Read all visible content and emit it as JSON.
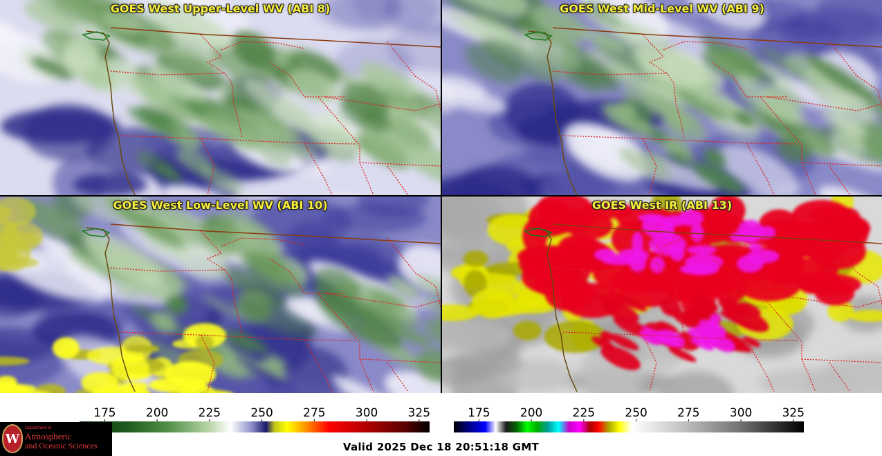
{
  "panels": [
    {
      "id": "upper",
      "title": "GOES West Upper-Level WV (ABI 8)",
      "palette": "wv",
      "moisture": 0.78
    },
    {
      "id": "mid",
      "title": "GOES West Mid-Level WV (ABI 9)",
      "palette": "wv",
      "moisture": 0.55
    },
    {
      "id": "low",
      "title": "GOES West Low-Level WV (ABI 10)",
      "palette": "wv",
      "moisture": 0.4
    },
    {
      "id": "ir",
      "title": "GOES West IR (ABI 13)",
      "palette": "ir",
      "moisture": 0.5
    }
  ],
  "colorbars": [
    {
      "name": "wv-colorbar",
      "ticks": [
        175,
        200,
        225,
        250,
        275,
        300,
        325
      ],
      "min": 163,
      "max": 330,
      "stops": [
        [
          163,
          "#0b2f0b"
        ],
        [
          185,
          "#1d5a1d"
        ],
        [
          205,
          "#4f8f45"
        ],
        [
          225,
          "#b9d6a8"
        ],
        [
          235,
          "#ffffff"
        ],
        [
          245,
          "#8f90c9"
        ],
        [
          252,
          "#18186e"
        ],
        [
          256,
          "#c2c21a"
        ],
        [
          262,
          "#ffff00"
        ],
        [
          270,
          "#ffa000"
        ],
        [
          282,
          "#ff0000"
        ],
        [
          300,
          "#b00000"
        ],
        [
          318,
          "#5a0000"
        ],
        [
          330,
          "#000000"
        ]
      ]
    },
    {
      "name": "ir-colorbar",
      "ticks": [
        175,
        200,
        225,
        250,
        275,
        300,
        325
      ],
      "min": 163,
      "max": 330,
      "stops": [
        [
          163,
          "#000000"
        ],
        [
          170,
          "#000080"
        ],
        [
          178,
          "#0000ff"
        ],
        [
          183,
          "#ffffff"
        ],
        [
          188,
          "#1a1a1a"
        ],
        [
          193,
          "#006600"
        ],
        [
          198,
          "#00ff00"
        ],
        [
          203,
          "#00aa00"
        ],
        [
          208,
          "#00a0a0"
        ],
        [
          213,
          "#00ffff"
        ],
        [
          218,
          "#cc00cc"
        ],
        [
          223,
          "#ff00ff"
        ],
        [
          228,
          "#aa0000"
        ],
        [
          232,
          "#ff0000"
        ],
        [
          237,
          "#aaaa00"
        ],
        [
          242,
          "#ffff00"
        ],
        [
          248,
          "#ffffff"
        ],
        [
          270,
          "#c8c8c8"
        ],
        [
          300,
          "#707070"
        ],
        [
          330,
          "#000000"
        ]
      ]
    }
  ],
  "valid_time": "Valid 2025 Dec 18 20:51:18 GMT",
  "logo": {
    "line1": "Department of",
    "line2": "Atmospheric",
    "line3": "and Oceanic Sciences",
    "seal": "W"
  },
  "colors": {
    "state_border": "#e02020",
    "country_border": "#8b3a10",
    "coast": "#6b4a10",
    "title": "#f7ef3a"
  }
}
